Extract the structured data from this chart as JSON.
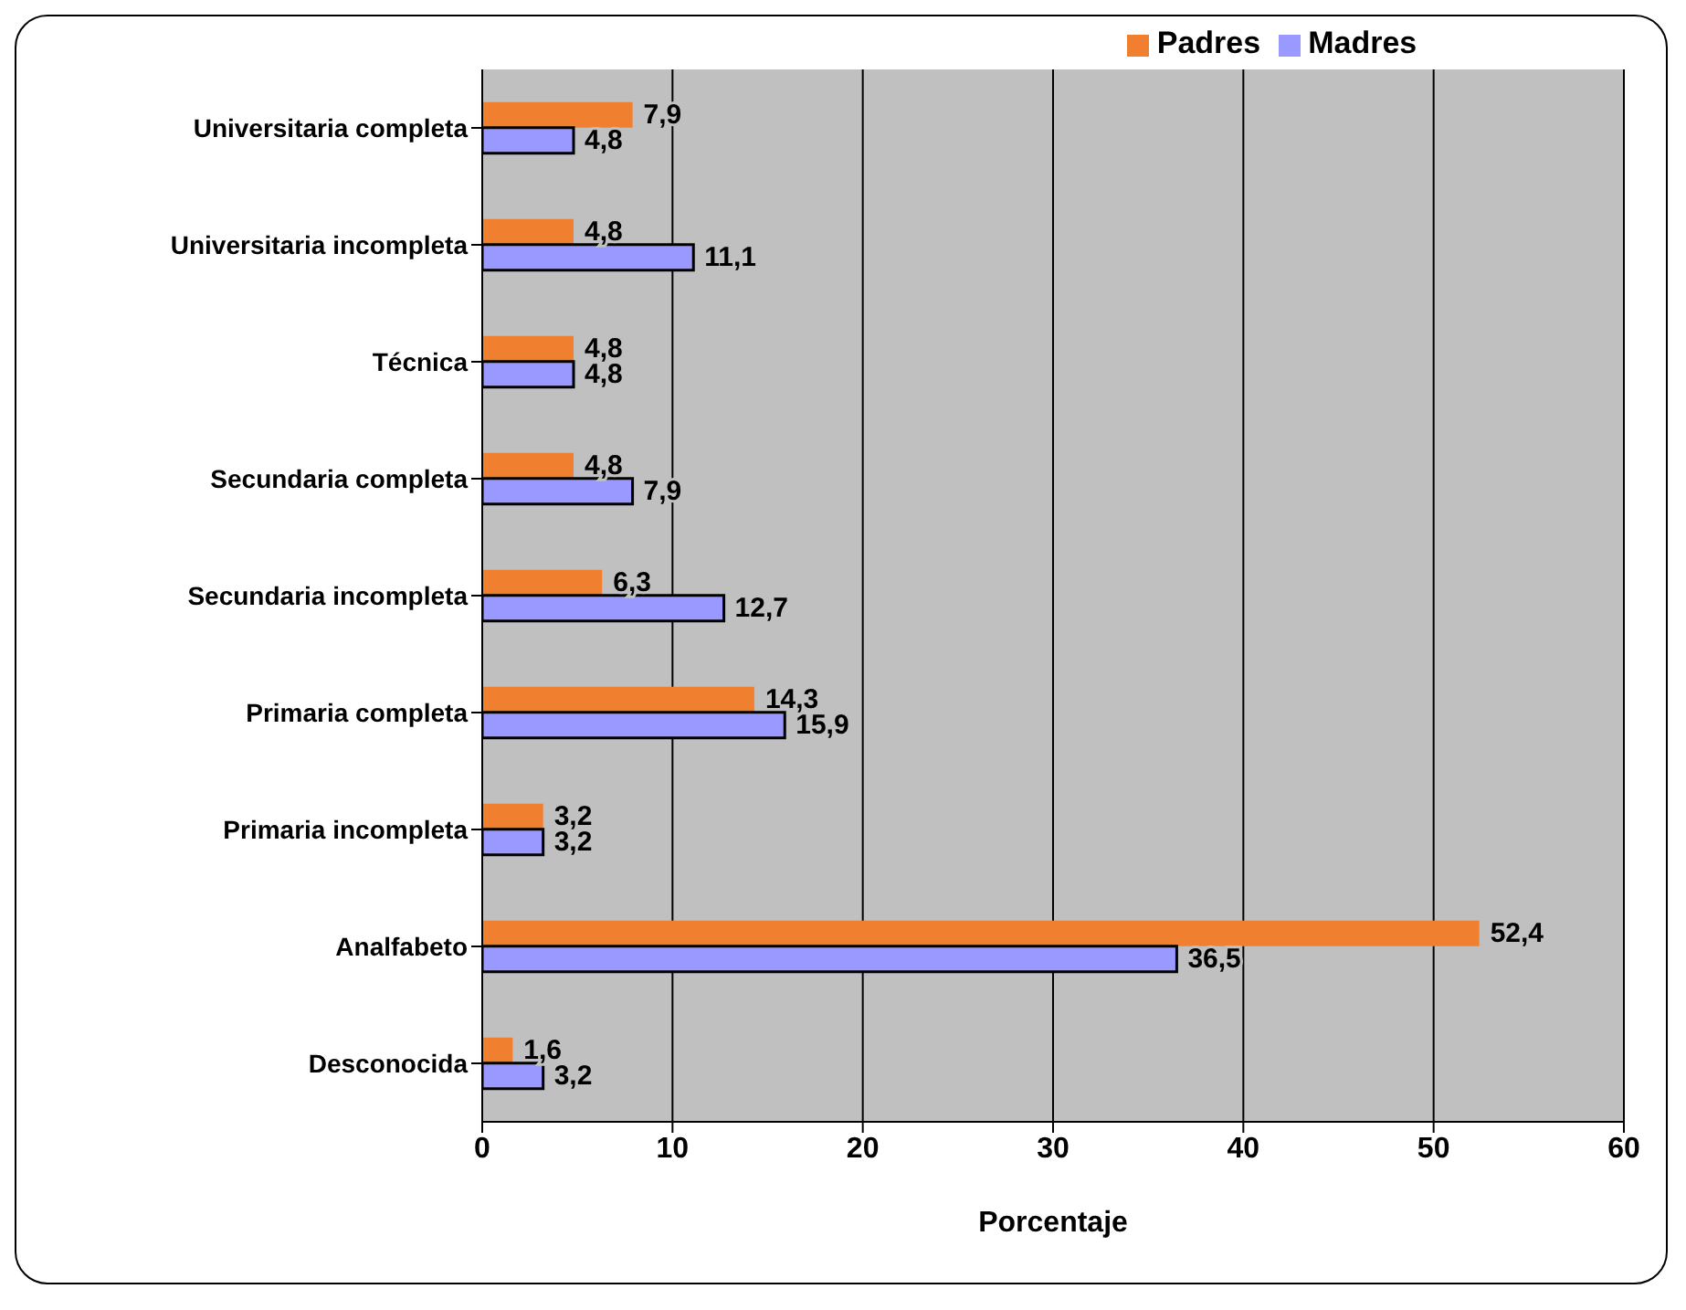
{
  "chart_data": {
    "type": "bar",
    "orientation": "horizontal",
    "categories": [
      "Universitaria completa",
      "Universitaria incompleta",
      "Técnica",
      "Secundaria completa",
      "Secundaria incompleta",
      "Primaria completa",
      "Primaria incompleta",
      "Analfabeto",
      "Desconocida"
    ],
    "series": [
      {
        "name": "Padres",
        "color": "#f08030",
        "values": [
          7.9,
          4.8,
          4.8,
          4.8,
          6.3,
          14.3,
          3.2,
          52.4,
          1.6
        ],
        "value_labels": [
          "7,9",
          "4,8",
          "4,8",
          "4,8",
          "6,3",
          "14,3",
          "3,2",
          "52,4",
          "1,6"
        ]
      },
      {
        "name": "Madres",
        "color": "#9999ff",
        "values": [
          4.8,
          11.1,
          4.8,
          7.9,
          12.7,
          15.9,
          3.2,
          36.5,
          3.2
        ],
        "value_labels": [
          "4,8",
          "11,1",
          "4,8",
          "7,9",
          "12,7",
          "15,9",
          "3,2",
          "36,5",
          "3,2"
        ]
      }
    ],
    "xlabel": "Porcentaje",
    "xlim": [
      0,
      60
    ],
    "xticks": [
      0,
      10,
      20,
      30,
      40,
      50,
      60
    ],
    "grid": "x",
    "legend": "top"
  }
}
